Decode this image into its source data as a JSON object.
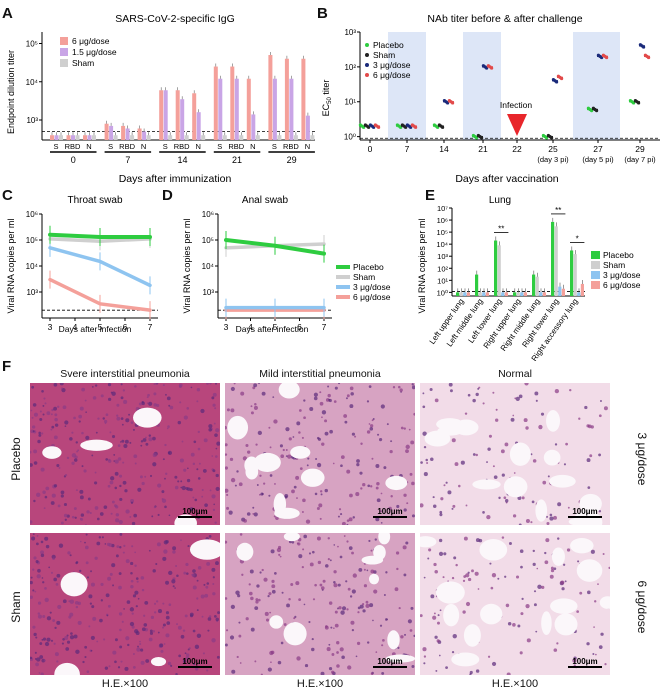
{
  "panels": {
    "A": {
      "letter": "A",
      "title": "SARS-CoV-2-specific IgG",
      "ylabel": "Endpoint dilution titer",
      "xlabel": "Days after immunization"
    },
    "B": {
      "letter": "B",
      "title": "NAb titer before & after challenge",
      "ylabel_main": "EC",
      "ylabel_sub": "50",
      "ylabel_tail": " titer",
      "xlabel": "Days after vaccination",
      "infection_label": "Infection"
    },
    "C": {
      "letter": "C",
      "title": "Throat swab",
      "ylabel": "Viral RNA copies per ml",
      "xlabel": "Days after infection"
    },
    "D": {
      "letter": "D",
      "title": "Anal swab",
      "ylabel": "Viral RNA copies per ml",
      "xlabel": "Days after infection"
    },
    "E": {
      "letter": "E",
      "title": "Lung",
      "ylabel": "Viral RNA copies per ml"
    },
    "F": {
      "letter": "F",
      "col_titles": [
        "Svere interstitial pneumonia",
        "Mild interstitial pneumonia",
        "Normal"
      ],
      "row_labels": [
        "Placebo",
        "Sham"
      ],
      "right_labels": [
        "3 μg/dose",
        "6 μg/dose"
      ],
      "scale_bar": "100μm",
      "stain_labels": [
        "H.E.×100",
        "H.E.×100",
        "H.E.×100"
      ]
    }
  },
  "colors": {
    "dose6": "#f4a09a",
    "dose15": "#c9a5e6",
    "sham": "#cfcfcf",
    "placebo": "#2ecc40",
    "dose3": "#8ec4f0",
    "navy": "#1a2a7a",
    "red": "#e24a4a",
    "tissue": "#c2578a",
    "tissue_light": "#e8bfd6"
  },
  "chart_data": [
    {
      "panel": "A",
      "type": "bar",
      "log_scale": true,
      "ylim": [
        300,
        200000
      ],
      "yticks": [
        "10³",
        "10⁴",
        "10⁵"
      ],
      "categories": [
        "0",
        "7",
        "14",
        "21",
        "29"
      ],
      "subcategories": [
        "S",
        "RBD",
        "N"
      ],
      "series": [
        {
          "name": "6 μg/dose",
          "values": [
            [
              400,
              400,
              400
            ],
            [
              800,
              700,
              600
            ],
            [
              6000,
              6000,
              5000
            ],
            [
              25000,
              25000,
              12000
            ],
            [
              50000,
              40000,
              40000
            ]
          ]
        },
        {
          "name": "1.5 μg/dose",
          "values": [
            [
              400,
              400,
              400
            ],
            [
              700,
              600,
              500
            ],
            [
              6000,
              3500,
              1600
            ],
            [
              12000,
              12000,
              1400
            ],
            [
              12000,
              12000,
              1300
            ]
          ]
        },
        {
          "name": "Sham",
          "values": [
            [
              400,
              400,
              400
            ],
            [
              400,
              400,
              400
            ],
            [
              400,
              400,
              400
            ],
            [
              400,
              400,
              400
            ],
            [
              400,
              400,
              400
            ]
          ]
        }
      ]
    },
    {
      "panel": "B",
      "type": "scatter",
      "log_scale": true,
      "ylim": [
        0.8,
        1000
      ],
      "yticks": [
        "10⁰",
        "10¹",
        "10²",
        "10³"
      ],
      "categories": [
        "0",
        "7",
        "14",
        "21",
        "22",
        "25",
        "27",
        "29"
      ],
      "sub_labels": [
        "",
        "",
        "",
        "",
        "",
        "(day 3 pi)",
        "(day 5 pi)",
        "(day 7 pi)"
      ],
      "series": [
        {
          "name": "Placebo",
          "values": [
            2,
            2,
            2,
            1,
            null,
            1,
            6,
            10
          ]
        },
        {
          "name": "Sham",
          "values": [
            2,
            2,
            2,
            1,
            null,
            1,
            6,
            10
          ]
        },
        {
          "name": "3 μg/dose",
          "values": [
            2,
            2,
            10,
            100,
            null,
            40,
            200,
            400
          ]
        },
        {
          "name": "6 μg/dose",
          "values": [
            2,
            2,
            10,
            100,
            null,
            50,
            200,
            200
          ]
        }
      ]
    },
    {
      "panel": "C",
      "type": "line",
      "log_scale": true,
      "ylim": [
        100,
        1000000
      ],
      "yticks": [
        "10³",
        "10⁴",
        "10⁵",
        "10⁶"
      ],
      "x": [
        3,
        5,
        7
      ],
      "series": [
        {
          "name": "Placebo",
          "values": [
            160000,
            130000,
            130000
          ]
        },
        {
          "name": "Sham",
          "values": [
            110000,
            90000,
            110000
          ]
        },
        {
          "name": "3 μg/dose",
          "values": [
            50000,
            15000,
            1800
          ]
        },
        {
          "name": "6 μg/dose",
          "values": [
            3000,
            350,
            200
          ]
        }
      ]
    },
    {
      "panel": "D",
      "type": "line",
      "log_scale": true,
      "ylim": [
        100,
        1000000
      ],
      "yticks": [
        "10³",
        "10⁴",
        "10⁵",
        "10⁶"
      ],
      "x": [
        3,
        5,
        7
      ],
      "series": [
        {
          "name": "Placebo",
          "values": [
            100000,
            60000,
            30000
          ]
        },
        {
          "name": "Sham",
          "values": [
            50000,
            60000,
            70000
          ]
        },
        {
          "name": "3 μg/dose",
          "values": [
            250,
            250,
            250
          ]
        },
        {
          "name": "6 μg/dose",
          "values": [
            200,
            200,
            200
          ]
        }
      ]
    },
    {
      "panel": "E",
      "type": "bar",
      "log_scale": true,
      "ylim": [
        0.5,
        10000000
      ],
      "yticks": [
        "10⁰",
        "10¹",
        "10²",
        "10³",
        "10⁴",
        "10⁵",
        "10⁶",
        "10⁷"
      ],
      "categories": [
        "Left upper lung",
        "Left middle lung",
        "Left lower lung",
        "Right upper lung",
        "Right middle lung",
        "Right lower lung",
        "Right accessory lung"
      ],
      "series": [
        {
          "name": "Placebo",
          "values": [
            1,
            30,
            20000,
            1,
            30,
            700000,
            3000
          ]
        },
        {
          "name": "Sham",
          "values": [
            1,
            1,
            8000,
            1,
            20,
            300000,
            1500
          ]
        },
        {
          "name": "3 μg/dose",
          "values": [
            1,
            1,
            1,
            1,
            1,
            3,
            1
          ]
        },
        {
          "name": "6 μg/dose",
          "values": [
            1,
            1,
            1,
            1,
            1,
            2,
            5
          ]
        }
      ],
      "significance": [
        "**",
        "**",
        "*"
      ]
    }
  ]
}
